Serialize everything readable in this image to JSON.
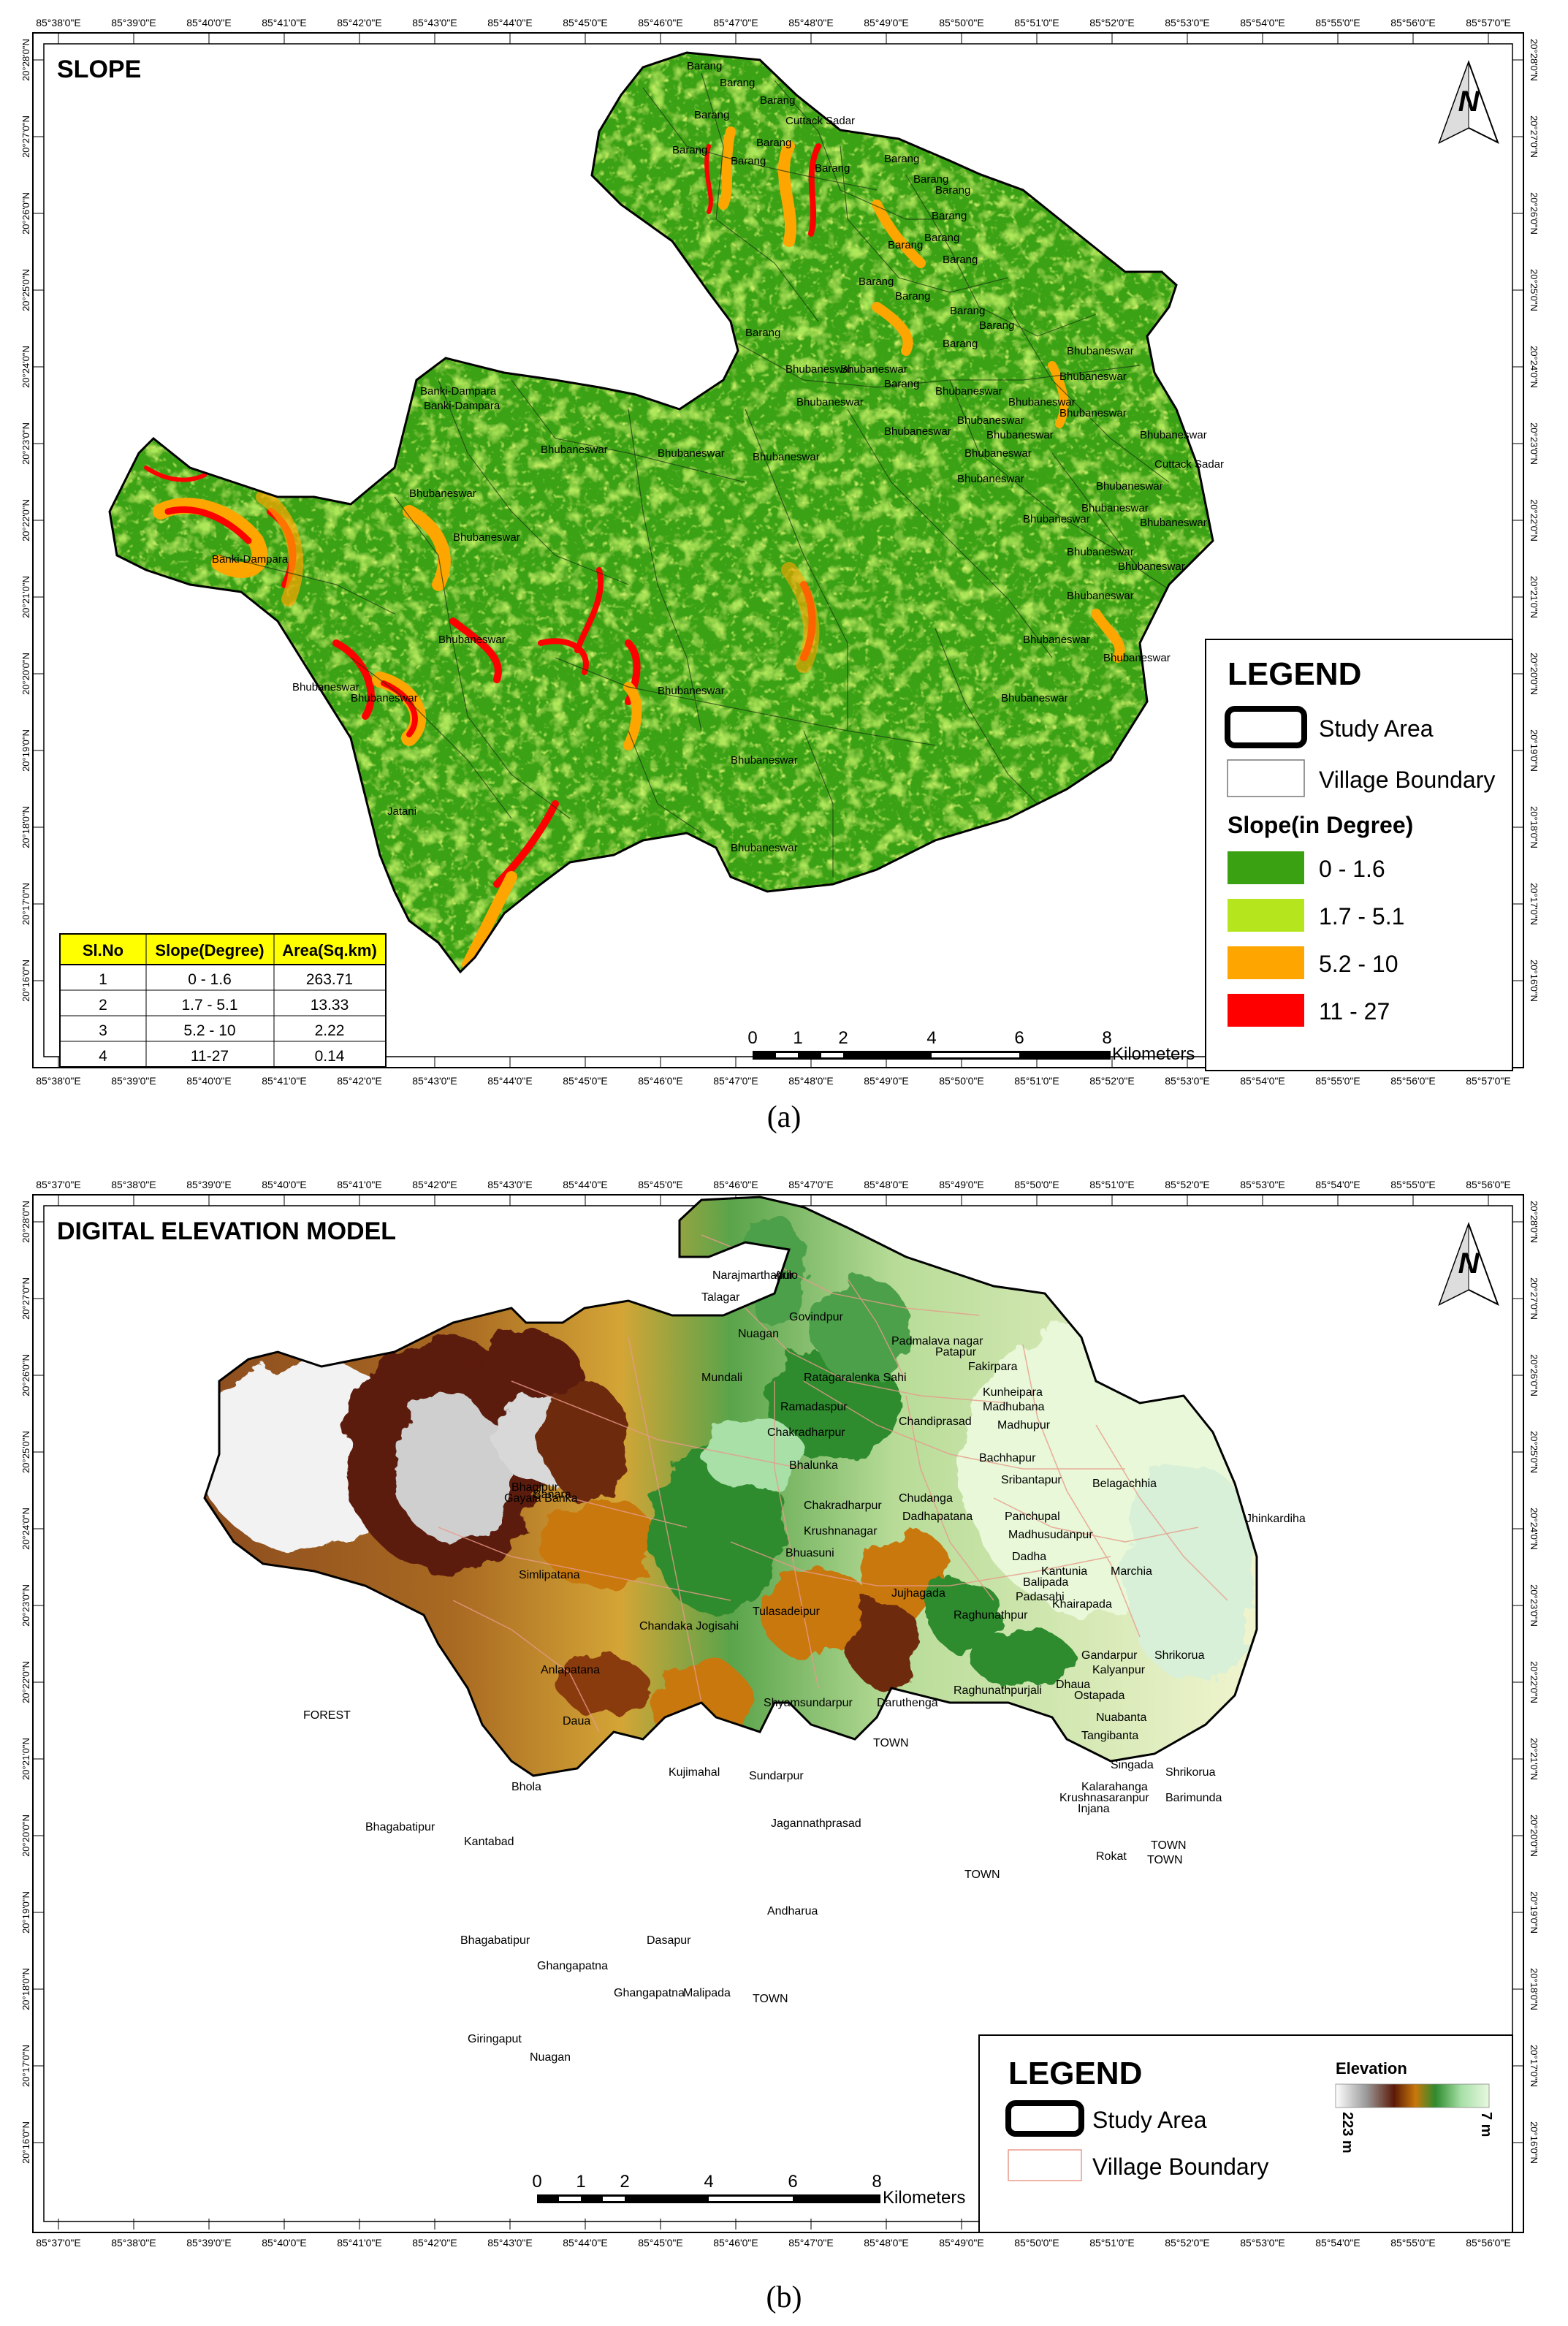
{
  "panel_a": {
    "title": "SLOPE",
    "top_ticks": [
      "85°38'0\"E",
      "85°39'0\"E",
      "85°40'0\"E",
      "85°41'0\"E",
      "85°42'0\"E",
      "85°43'0\"E",
      "85°44'0\"E",
      "85°45'0\"E",
      "85°46'0\"E",
      "85°47'0\"E",
      "85°48'0\"E",
      "85°49'0\"E",
      "85°50'0\"E",
      "85°51'0\"E",
      "85°52'0\"E",
      "85°53'0\"E",
      "85°54'0\"E",
      "85°55'0\"E",
      "85°56'0\"E",
      "85°57'0\"E"
    ],
    "side_ticks": [
      "20°28'0\"N",
      "20°27'0\"N",
      "20°26'0\"N",
      "20°25'0\"N",
      "20°24'0\"N",
      "20°23'0\"N",
      "20°22'0\"N",
      "20°21'0\"N",
      "20°20'0\"N",
      "20°19'0\"N",
      "20°18'0\"N",
      "20°17'0\"N",
      "20°16'0\"N"
    ],
    "north_letter": "N",
    "legend": {
      "title": "LEGEND",
      "study_area": "Study Area",
      "village_boundary": "Village Boundary",
      "slope_heading": "Slope(in Degree)",
      "classes": [
        {
          "label": "0 - 1.6",
          "color": "#3aa212"
        },
        {
          "label": "1.7 - 5.1",
          "color": "#b5e61d"
        },
        {
          "label": "5.2 - 10",
          "color": "#ffa500"
        },
        {
          "label": "11 - 27",
          "color": "#ff0000"
        }
      ]
    },
    "table": {
      "headers": [
        "Sl.No",
        "Slope(Degree)",
        "Area(Sq.km)"
      ],
      "rows": [
        [
          "1",
          "0 - 1.6",
          "263.71"
        ],
        [
          "2",
          "1.7 - 5.1",
          "13.33"
        ],
        [
          "3",
          "5.2 - 10",
          "2.22"
        ],
        [
          "4",
          "11-27",
          "0.14"
        ]
      ]
    },
    "scale": {
      "ticks": [
        "0",
        "1",
        "2",
        "4",
        "6",
        "8"
      ],
      "unit": "Kilometers"
    },
    "places": [
      "Barang",
      "Barang",
      "Barang",
      "Cuttack Sadar",
      "Barang",
      "Barang",
      "Barang",
      "Barang",
      "Barang",
      "Barang",
      "Barang",
      "Barang",
      "Barang",
      "Barang",
      "Barang",
      "Barang",
      "Barang",
      "Barang",
      "Barang",
      "Barang",
      "Barang",
      "Bhubaneswar",
      "Bhubaneswar",
      "Barang",
      "Barang",
      "Bhubaneswar",
      "Bhubaneswar",
      "Banki-Dampara",
      "Banki-Dampara",
      "Bhubaneswar",
      "Bhubaneswar",
      "Bhubaneswar",
      "Bhubaneswar",
      "Bhubaneswar",
      "Bhubaneswar",
      "Bhubaneswar",
      "Bhubaneswar",
      "Cuttack Sadar",
      "Bhubaneswar",
      "Bhubaneswar",
      "Banki-Dampara",
      "Bhubaneswar",
      "Bhubaneswar",
      "Bhubaneswar",
      "Bhubaneswar",
      "Bhubaneswar",
      "Bhubaneswar",
      "Bhubaneswar",
      "Bhubaneswar",
      "Bhubaneswar",
      "Bhubaneswar",
      "Bhubaneswar",
      "Bhubaneswar",
      "Bhubaneswar",
      "Bhubaneswar",
      "Bhubaneswar",
      "Bhubaneswar",
      "Bhubaneswar",
      "Bhubaneswar",
      "Bhubaneswar",
      "Bhubaneswar",
      "Bhubaneswar",
      "Jatani"
    ],
    "caption": "(a)"
  },
  "panel_b": {
    "title": "DIGITAL ELEVATION MODEL",
    "top_ticks": [
      "85°37'0\"E",
      "85°38'0\"E",
      "85°39'0\"E",
      "85°40'0\"E",
      "85°41'0\"E",
      "85°42'0\"E",
      "85°43'0\"E",
      "85°44'0\"E",
      "85°45'0\"E",
      "85°46'0\"E",
      "85°47'0\"E",
      "85°48'0\"E",
      "85°49'0\"E",
      "85°50'0\"E",
      "85°51'0\"E",
      "85°52'0\"E",
      "85°53'0\"E",
      "85°54'0\"E",
      "85°55'0\"E",
      "85°56'0\"E"
    ],
    "side_ticks": [
      "20°28'0\"N",
      "20°27'0\"N",
      "20°26'0\"N",
      "20°25'0\"N",
      "20°24'0\"N",
      "20°23'0\"N",
      "20°22'0\"N",
      "20°21'0\"N",
      "20°20'0\"N",
      "20°19'0\"N",
      "20°18'0\"N",
      "20°17'0\"N",
      "20°16'0\"N"
    ],
    "north_letter": "N",
    "legend": {
      "title": "LEGEND",
      "study_area": "Study Area",
      "village_boundary": "Village Boundary",
      "elevation_heading": "Elevation",
      "elevation_max": "223 m",
      "elevation_min": "7 m",
      "ramp_colors": [
        "#ffffff",
        "#9a9a9a",
        "#5c1a08",
        "#c8780a",
        "#2e8b2e",
        "#a8e0a8",
        "#e8f8e0"
      ]
    },
    "scale": {
      "ticks": [
        "0",
        "1",
        "2",
        "4",
        "6",
        "8"
      ],
      "unit": "Kilometers"
    },
    "places": [
      "Narajmarthapur",
      "Arilo",
      "Talagar",
      "Govindpur",
      "Nuagan",
      "Padmalava nagar",
      "Patapur",
      "Fakirpara",
      "Mundali",
      "Ratagaralenka Sahi",
      "Ramadaspur",
      "Kunheipara",
      "Madhubana",
      "Chandiprasad",
      "Madhupur",
      "Chakradharpur",
      "Bachhapur",
      "Bhalunka",
      "Sribantapur",
      "Chudanga",
      "Belagachhia",
      "Chakradharpur",
      "Dadhapatana",
      "Panchupal",
      "Jhinkardiha",
      "Krushnanagar",
      "Madhusudanpur",
      "Bhagipur",
      "Banara",
      "Gayala Banka",
      "Dadha",
      "Bhuasuni",
      "Kantunia",
      "Marchia",
      "Balipada",
      "Simlipatana",
      "Jujhagada",
      "Padasahi",
      "Khairapada",
      "Tulasadeipur",
      "Raghunathpur",
      "Chandaka Jogisahi",
      "Gandarpur",
      "Shrikorua",
      "Anlapatana",
      "Kalyanpur",
      "Dhaua",
      "Ostapada",
      "Shyamsundarpur",
      "Daruthenga",
      "Raghunathpurjali",
      "FOREST",
      "Nuabanta",
      "Daua",
      "Tangibanta",
      "TOWN",
      "Singada",
      "Shrikorua",
      "Kujimahal",
      "Sundarpur",
      "Bhola",
      "Kalarahanga",
      "Krushnasaranpur",
      "Barimunda",
      "Injana",
      "Bhagabatipur",
      "Jagannathprasad",
      "Kantabad",
      "Rokat",
      "TOWN",
      "TOWN",
      "TOWN",
      "Andharua",
      "Bhagabatipur",
      "Dasapur",
      "Ghangapatna",
      "Ghangapatna",
      "Malipada",
      "TOWN",
      "Giringaput",
      "Nuagan"
    ],
    "caption": "(b)"
  }
}
